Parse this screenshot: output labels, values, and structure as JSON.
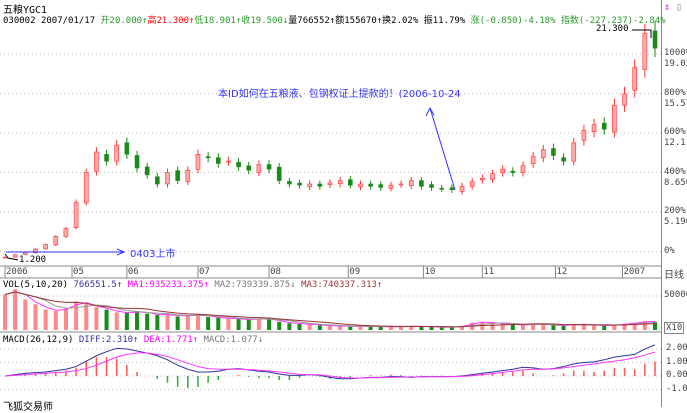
{
  "header": {
    "title": "五粮YGC1",
    "code": "030002",
    "date": "2007/01/17",
    "open": "开20.000↑",
    "high": "高21.300↑",
    "low": "低18.901↑",
    "close": "收19.500↓",
    "volume": "量766552↑",
    "amount": "额155670↑",
    "turnover": "换2.02%",
    "amplitude": "振11.79%",
    "change": "涨(-0.850)-4.18%",
    "index": "指数(-227.237)-2.84%"
  },
  "colors": {
    "up": "#ff3333",
    "down": "#1a8a1a",
    "annotation": "#3333ff",
    "diff": "#333399",
    "dea": "#ff33ff",
    "ma3": "#993333"
  },
  "annotations": {
    "note": "本ID如何在五粮液、包钢权证上提款的！(2006-10-24",
    "listing": "0403上市",
    "low_label": "1.200",
    "high_label": "21.300"
  },
  "price_axis": [
    {
      "pct": "1000%",
      "price": "19.030"
    },
    {
      "pct": "800%",
      "price": "15.570"
    },
    {
      "pct": "600%",
      "price": "12.110"
    },
    {
      "pct": "400%",
      "price": "8.650"
    },
    {
      "pct": "200%",
      "price": "5.190"
    },
    {
      "pct": "0%",
      "price": ""
    }
  ],
  "period_label": "日线",
  "date_labels": [
    {
      "label": "2006",
      "idx": 0
    },
    {
      "label": "05",
      "idx": 6.6
    },
    {
      "label": "06",
      "idx": 12
    },
    {
      "label": "07",
      "idx": 19
    },
    {
      "label": "08",
      "idx": 26
    },
    {
      "label": "09",
      "idx": 33.8
    },
    {
      "label": "10",
      "idx": 41.2
    },
    {
      "label": "11",
      "idx": 47
    },
    {
      "label": "12",
      "idx": 54.2
    },
    {
      "label": "2007",
      "idx": 60.8
    }
  ],
  "vol_panel": {
    "label": "VOL(5,10,20)",
    "value": "766551.5↑",
    "ma1": "MA1:935233.375↑",
    "ma2": "MA2:739339.875↓",
    "ma3": "MA3:740337.313↑",
    "axis_top": "500000",
    "axis_unit": "X10"
  },
  "macd_panel": {
    "label": "MACD(26,12,9)",
    "diff": "DIFF:2.310↑",
    "dea": "DEA:1.771↑",
    "macd": "MACD:1.077↓",
    "axis": [
      "2.00",
      "1.00",
      "0.00",
      "-1.00"
    ]
  },
  "footer": "飞狐交易师",
  "chart_data": {
    "type": "candlestick",
    "close": [
      1.2,
      1.4,
      1.6,
      1.9,
      2.3,
      3.0,
      3.7,
      6.0,
      8.6,
      10.4,
      9.6,
      11.0,
      10.2,
      9.0,
      8.4,
      7.6,
      8.6,
      7.9,
      8.8,
      10.2,
      9.9,
      9.4,
      9.6,
      9.1,
      8.8,
      9.3,
      8.9,
      7.9,
      7.6,
      7.5,
      7.6,
      7.4,
      7.7,
      7.9,
      7.5,
      7.6,
      7.4,
      7.3,
      7.5,
      7.6,
      7.9,
      7.4,
      7.3,
      7.2,
      7.1,
      7.4,
      7.8,
      8.1,
      8.5,
      8.9,
      8.6,
      9.2,
      10.0,
      10.6,
      10.1,
      9.6,
      11.2,
      12.3,
      12.8,
      12.4,
      14.5,
      15.5,
      17.8,
      20.8,
      19.5
    ],
    "volume": [
      520000,
      600000,
      450000,
      380000,
      300000,
      280000,
      320000,
      420000,
      380000,
      340000,
      300000,
      260000,
      250000,
      280000,
      240000,
      220000,
      230000,
      200000,
      210000,
      230000,
      190000,
      180000,
      170000,
      160000,
      150000,
      170000,
      160000,
      120000,
      100000,
      90000,
      80000,
      70000,
      60000,
      60000,
      50000,
      55000,
      50000,
      50000,
      45000,
      50000,
      60000,
      50000,
      45000,
      40000,
      40000,
      60000,
      110000,
      120000,
      100000,
      90000,
      80000,
      70000,
      90000,
      80000,
      70000,
      60000,
      90000,
      80000,
      70000,
      60000,
      80000,
      90000,
      110000,
      130000,
      120000
    ],
    "diff": [
      0,
      0.1,
      0.2,
      0.25,
      0.3,
      0.4,
      0.5,
      0.7,
      1.1,
      1.5,
      1.8,
      2.05,
      2.0,
      1.85,
      1.7,
      1.5,
      1.2,
      0.8,
      0.5,
      0.3,
      0.3,
      0.35,
      0.5,
      0.55,
      0.45,
      0.35,
      0.3,
      0.15,
      0.05,
      0.05,
      0.1,
      0.05,
      -0.1,
      -0.2,
      -0.2,
      -0.15,
      -0.1,
      -0.1,
      -0.05,
      -0.05,
      -0.1,
      -0.05,
      -0.05,
      -0.05,
      -0.05,
      0.0,
      0.1,
      0.2,
      0.3,
      0.4,
      0.5,
      0.65,
      0.6,
      0.5,
      0.55,
      0.7,
      0.9,
      1.0,
      1.05,
      1.2,
      1.4,
      1.5,
      1.6,
      2.0,
      2.31
    ],
    "dea": [
      0,
      0.05,
      0.1,
      0.15,
      0.2,
      0.25,
      0.3,
      0.4,
      0.55,
      0.8,
      1.1,
      1.4,
      1.6,
      1.7,
      1.7,
      1.6,
      1.45,
      1.2,
      0.95,
      0.7,
      0.55,
      0.5,
      0.5,
      0.5,
      0.48,
      0.43,
      0.38,
      0.3,
      0.2,
      0.12,
      0.1,
      0.08,
      0.0,
      -0.1,
      -0.15,
      -0.15,
      -0.13,
      -0.12,
      -0.1,
      -0.08,
      -0.08,
      -0.07,
      -0.06,
      -0.06,
      -0.05,
      -0.03,
      0.02,
      0.1,
      0.18,
      0.27,
      0.35,
      0.45,
      0.5,
      0.5,
      0.52,
      0.6,
      0.7,
      0.8,
      0.9,
      1.0,
      1.1,
      1.2,
      1.35,
      1.55,
      1.771
    ],
    "ylim_price_pct": [
      0,
      1000
    ],
    "vol_ylim": [
      0,
      600000
    ],
    "macd_ylim": [
      -1,
      2.5
    ]
  }
}
